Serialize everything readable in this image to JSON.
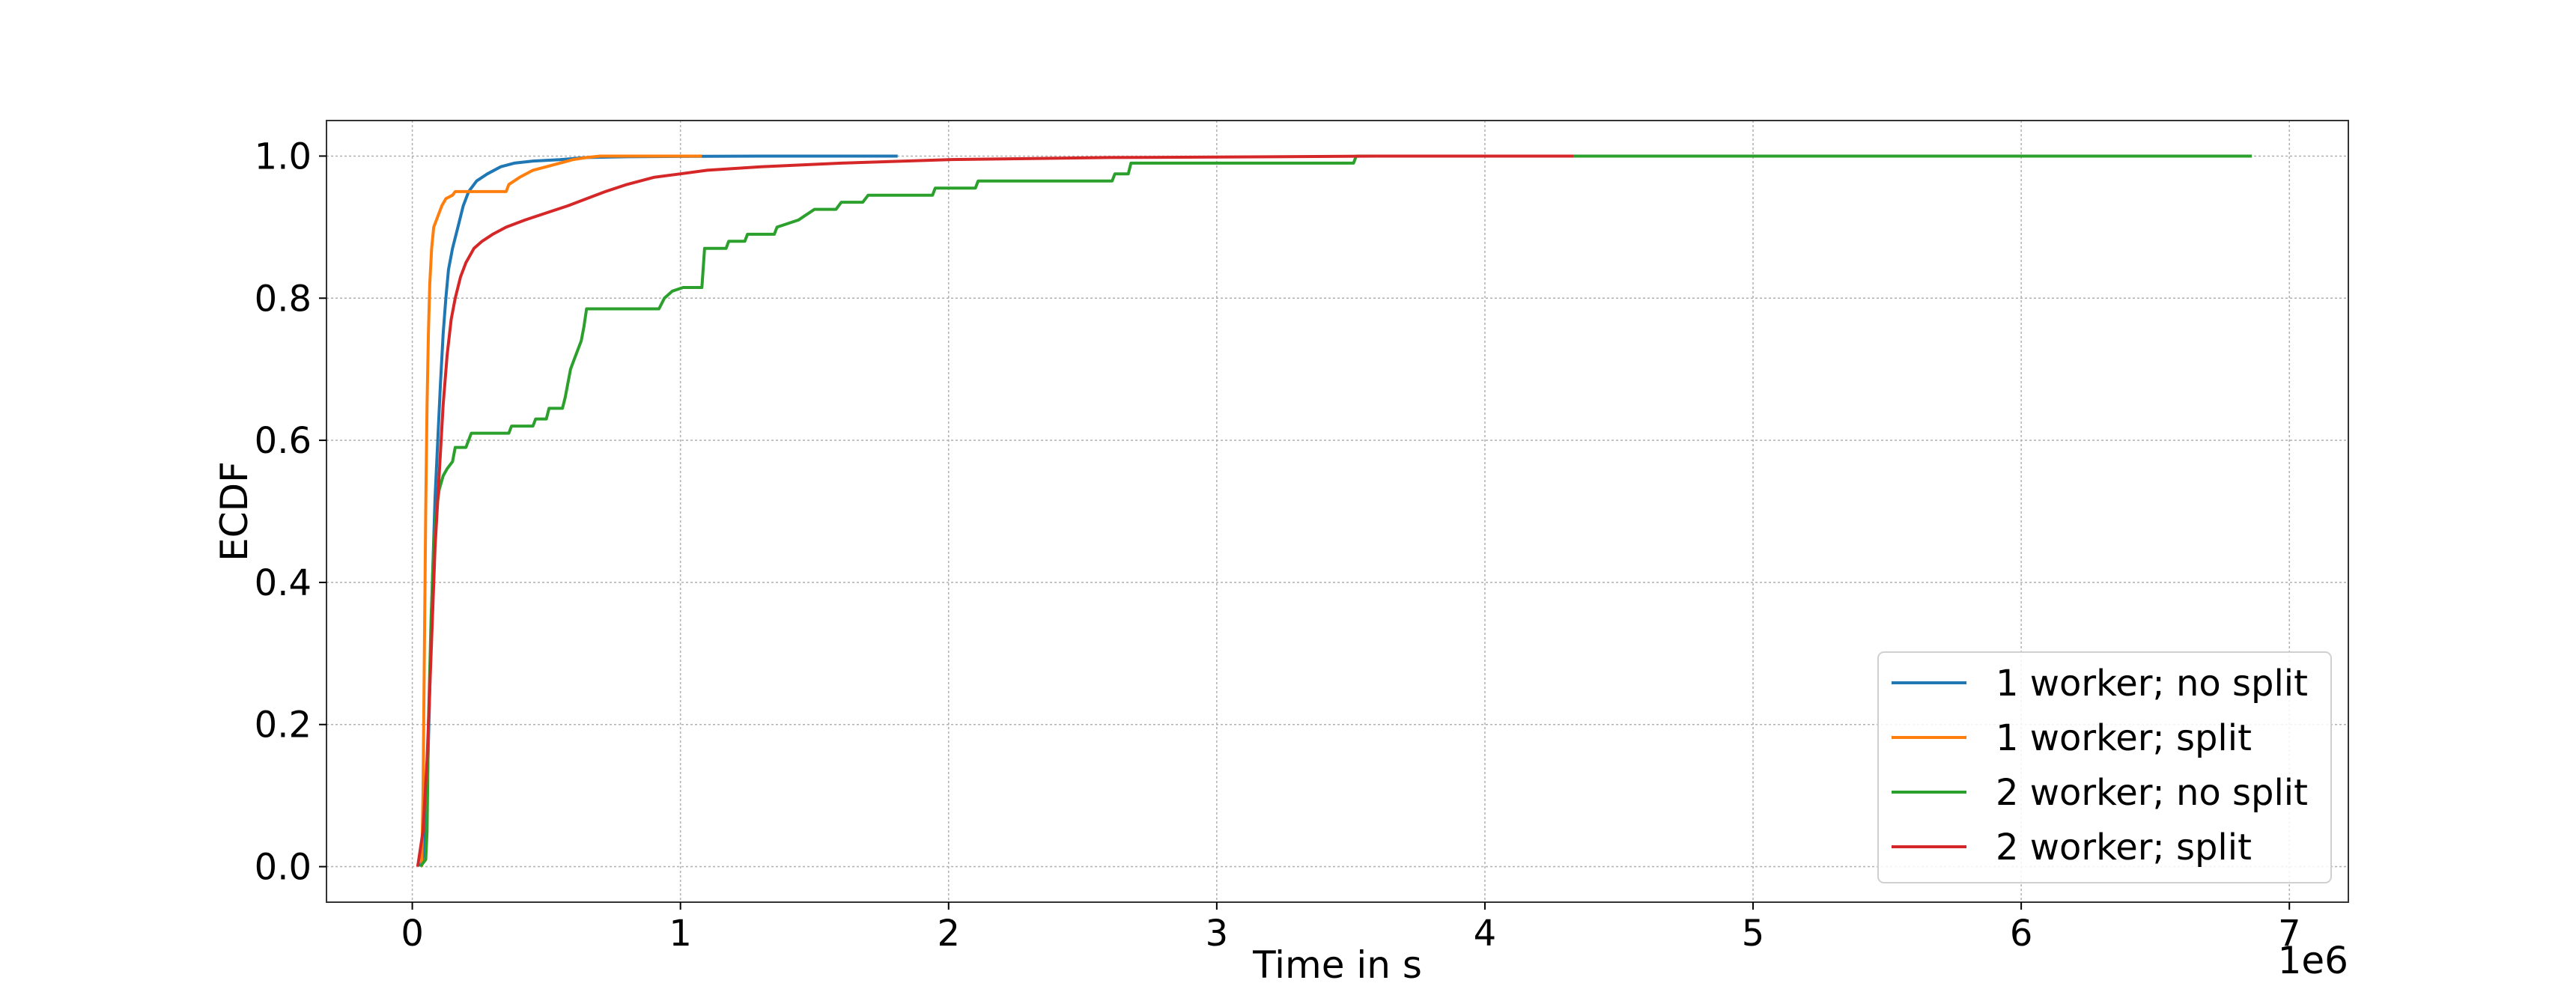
{
  "chart_data": {
    "type": "line",
    "title": "",
    "xlabel": "Time in s",
    "ylabel": "ECDF",
    "x_offset_label": "1e6",
    "x_scale_factor": 1000000,
    "xlim": [
      -320000,
      7220000
    ],
    "ylim": [
      -0.05,
      1.05
    ],
    "x_ticks": [
      0,
      1000000,
      2000000,
      3000000,
      4000000,
      5000000,
      6000000,
      7000000
    ],
    "x_tick_labels": [
      "0",
      "1",
      "2",
      "3",
      "4",
      "5",
      "6",
      "7"
    ],
    "y_ticks": [
      0.0,
      0.2,
      0.4,
      0.6,
      0.8,
      1.0
    ],
    "y_tick_labels": [
      "0.0",
      "0.2",
      "0.4",
      "0.6",
      "0.8",
      "1.0"
    ],
    "grid": true,
    "legend_position": "lower-right",
    "series": [
      {
        "name": "1 worker; no split",
        "color": "#1f77b4",
        "points": [
          [
            30000,
            0.0
          ],
          [
            45000,
            0.02
          ],
          [
            55000,
            0.1
          ],
          [
            65000,
            0.25
          ],
          [
            75000,
            0.4
          ],
          [
            85000,
            0.52
          ],
          [
            95000,
            0.6
          ],
          [
            105000,
            0.68
          ],
          [
            115000,
            0.75
          ],
          [
            125000,
            0.8
          ],
          [
            135000,
            0.84
          ],
          [
            150000,
            0.87
          ],
          [
            170000,
            0.9
          ],
          [
            190000,
            0.93
          ],
          [
            210000,
            0.95
          ],
          [
            240000,
            0.965
          ],
          [
            280000,
            0.975
          ],
          [
            330000,
            0.985
          ],
          [
            380000,
            0.99
          ],
          [
            450000,
            0.993
          ],
          [
            550000,
            0.995
          ],
          [
            650000,
            0.998
          ],
          [
            800000,
            0.999
          ],
          [
            1000000,
            0.9995
          ],
          [
            1300000,
            1.0
          ],
          [
            1810000,
            1.0
          ]
        ]
      },
      {
        "name": "1 worker; split",
        "color": "#ff7f0e",
        "points": [
          [
            35000,
            0.0
          ],
          [
            40000,
            0.1
          ],
          [
            45000,
            0.3
          ],
          [
            50000,
            0.5
          ],
          [
            55000,
            0.65
          ],
          [
            60000,
            0.75
          ],
          [
            65000,
            0.82
          ],
          [
            72000,
            0.87
          ],
          [
            80000,
            0.9
          ],
          [
            90000,
            0.91
          ],
          [
            100000,
            0.92
          ],
          [
            110000,
            0.93
          ],
          [
            125000,
            0.94
          ],
          [
            150000,
            0.945
          ],
          [
            160000,
            0.95
          ],
          [
            350000,
            0.95
          ],
          [
            360000,
            0.96
          ],
          [
            400000,
            0.97
          ],
          [
            450000,
            0.98
          ],
          [
            500000,
            0.985
          ],
          [
            550000,
            0.99
          ],
          [
            600000,
            0.995
          ],
          [
            650000,
            0.998
          ],
          [
            700000,
            1.0
          ],
          [
            1080000,
            1.0
          ]
        ]
      },
      {
        "name": "2 worker; no split",
        "color": "#2ca02c",
        "points": [
          [
            30000,
            0.0
          ],
          [
            50000,
            0.01
          ],
          [
            55000,
            0.05
          ],
          [
            60000,
            0.2
          ],
          [
            70000,
            0.35
          ],
          [
            80000,
            0.45
          ],
          [
            90000,
            0.5
          ],
          [
            100000,
            0.53
          ],
          [
            115000,
            0.55
          ],
          [
            130000,
            0.56
          ],
          [
            150000,
            0.57
          ],
          [
            160000,
            0.59
          ],
          [
            200000,
            0.59
          ],
          [
            220000,
            0.61
          ],
          [
            360000,
            0.61
          ],
          [
            370000,
            0.62
          ],
          [
            450000,
            0.62
          ],
          [
            460000,
            0.63
          ],
          [
            500000,
            0.63
          ],
          [
            510000,
            0.645
          ],
          [
            560000,
            0.645
          ],
          [
            570000,
            0.66
          ],
          [
            580000,
            0.68
          ],
          [
            590000,
            0.7
          ],
          [
            600000,
            0.71
          ],
          [
            610000,
            0.72
          ],
          [
            620000,
            0.73
          ],
          [
            630000,
            0.74
          ],
          [
            640000,
            0.76
          ],
          [
            650000,
            0.785
          ],
          [
            920000,
            0.785
          ],
          [
            940000,
            0.8
          ],
          [
            970000,
            0.81
          ],
          [
            1010000,
            0.815
          ],
          [
            1080000,
            0.815
          ],
          [
            1090000,
            0.87
          ],
          [
            1170000,
            0.87
          ],
          [
            1180000,
            0.88
          ],
          [
            1240000,
            0.88
          ],
          [
            1250000,
            0.89
          ],
          [
            1350000,
            0.89
          ],
          [
            1360000,
            0.9
          ],
          [
            1400000,
            0.905
          ],
          [
            1440000,
            0.91
          ],
          [
            1460000,
            0.915
          ],
          [
            1500000,
            0.925
          ],
          [
            1580000,
            0.925
          ],
          [
            1600000,
            0.935
          ],
          [
            1680000,
            0.935
          ],
          [
            1700000,
            0.945
          ],
          [
            1940000,
            0.945
          ],
          [
            1950000,
            0.955
          ],
          [
            2100000,
            0.955
          ],
          [
            2110000,
            0.965
          ],
          [
            2610000,
            0.965
          ],
          [
            2620000,
            0.975
          ],
          [
            2670000,
            0.975
          ],
          [
            2680000,
            0.99
          ],
          [
            3510000,
            0.99
          ],
          [
            3520000,
            1.0
          ],
          [
            6860000,
            1.0
          ]
        ]
      },
      {
        "name": "2 worker; split",
        "color": "#d62728",
        "points": [
          [
            20000,
            0.0
          ],
          [
            40000,
            0.05
          ],
          [
            55000,
            0.15
          ],
          [
            70000,
            0.3
          ],
          [
            85000,
            0.45
          ],
          [
            100000,
            0.55
          ],
          [
            115000,
            0.65
          ],
          [
            130000,
            0.72
          ],
          [
            145000,
            0.77
          ],
          [
            160000,
            0.8
          ],
          [
            180000,
            0.83
          ],
          [
            200000,
            0.85
          ],
          [
            230000,
            0.87
          ],
          [
            260000,
            0.88
          ],
          [
            300000,
            0.89
          ],
          [
            350000,
            0.9
          ],
          [
            420000,
            0.91
          ],
          [
            500000,
            0.92
          ],
          [
            580000,
            0.93
          ],
          [
            650000,
            0.94
          ],
          [
            720000,
            0.95
          ],
          [
            800000,
            0.96
          ],
          [
            900000,
            0.97
          ],
          [
            1000000,
            0.975
          ],
          [
            1100000,
            0.98
          ],
          [
            1300000,
            0.985
          ],
          [
            1600000,
            0.99
          ],
          [
            2000000,
            0.995
          ],
          [
            2600000,
            0.998
          ],
          [
            3200000,
            0.999
          ],
          [
            3600000,
            1.0
          ],
          [
            4330000,
            1.0
          ]
        ]
      }
    ]
  }
}
